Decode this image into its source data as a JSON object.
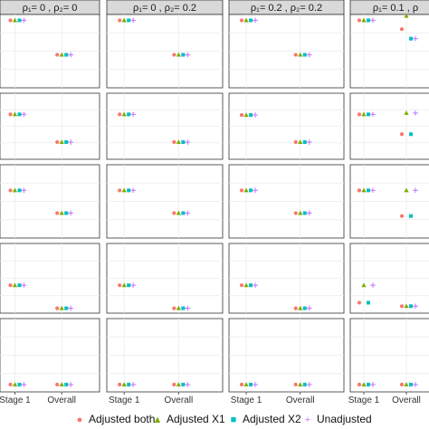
{
  "colors": {
    "adjusted_both": "#f8766d",
    "adjusted_x1": "#7cae00",
    "adjusted_x2": "#00bfc4",
    "unadjusted": "#c77cff",
    "strip_bg": "#d9d9d9",
    "panel_border": "#333333",
    "grid": "#ebebeb"
  },
  "legend": {
    "items": [
      {
        "label": "Adjusted both",
        "marker": "circle",
        "color_key": "adjusted_both"
      },
      {
        "label": "Adjusted X1",
        "marker": "triangle",
        "color_key": "adjusted_x1"
      },
      {
        "label": "Adjusted X2",
        "marker": "square",
        "color_key": "adjusted_x2"
      },
      {
        "label": "Unadjusted",
        "marker": "plus",
        "color_key": "unadjusted"
      }
    ],
    "placement": "bottom"
  },
  "chart_data": {
    "type": "scatter",
    "title": "",
    "xlabel": "",
    "ylabel": "",
    "categories": [
      "Stage 1",
      "Overall"
    ],
    "grid": true,
    "facet_columns": [
      {
        "strip_label": "ρ₁= 0 , ρ₂= 0"
      },
      {
        "strip_label": "ρ₁= 0 , ρ₂= 0.2"
      },
      {
        "strip_label": "ρ₁= 0.2 , ρ₂= 0.2"
      },
      {
        "strip_label": "ρ₁= 0.1 , ρ"
      }
    ],
    "facet_row_count": 5,
    "ylim": [
      0,
      1
    ],
    "series_order": [
      "Adjusted both",
      "Adjusted X1",
      "Adjusted X2",
      "Unadjusted"
    ],
    "panels": [
      {
        "row": 0,
        "col": 0,
        "points": {
          "Stage 1": [
            0.92,
            0.92,
            0.92,
            0.92
          ],
          "Overall": [
            0.45,
            0.45,
            0.45,
            0.45
          ]
        }
      },
      {
        "row": 0,
        "col": 1,
        "points": {
          "Stage 1": [
            0.92,
            0.92,
            0.92,
            0.92
          ],
          "Overall": [
            0.45,
            0.45,
            0.45,
            0.45
          ]
        }
      },
      {
        "row": 0,
        "col": 2,
        "points": {
          "Stage 1": [
            0.92,
            0.92,
            0.92,
            0.92
          ],
          "Overall": [
            0.45,
            0.45,
            0.45,
            0.45
          ]
        }
      },
      {
        "row": 0,
        "col": 3,
        "points": {
          "Stage 1": [
            0.92,
            0.92,
            0.92,
            0.92
          ],
          "Overall": [
            0.8,
            0.98,
            0.67,
            0.67
          ]
        }
      },
      {
        "row": 1,
        "col": 0,
        "points": {
          "Stage 1": [
            0.68,
            0.68,
            0.68,
            0.68
          ],
          "Overall": [
            0.26,
            0.26,
            0.26,
            0.26
          ]
        }
      },
      {
        "row": 1,
        "col": 1,
        "points": {
          "Stage 1": [
            0.68,
            0.68,
            0.68,
            0.68
          ],
          "Overall": [
            0.26,
            0.26,
            0.26,
            0.26
          ]
        }
      },
      {
        "row": 1,
        "col": 2,
        "points": {
          "Stage 1": [
            0.67,
            0.67,
            0.67,
            0.67
          ],
          "Overall": [
            0.26,
            0.26,
            0.26,
            0.26
          ]
        }
      },
      {
        "row": 1,
        "col": 3,
        "points": {
          "Stage 1": [
            0.68,
            0.68,
            0.68,
            0.68
          ],
          "Overall": [
            0.38,
            0.7,
            0.38,
            0.7
          ]
        }
      },
      {
        "row": 2,
        "col": 0,
        "points": {
          "Stage 1": [
            0.65,
            0.65,
            0.65,
            0.65
          ],
          "Overall": [
            0.34,
            0.34,
            0.34,
            0.34
          ]
        }
      },
      {
        "row": 2,
        "col": 1,
        "points": {
          "Stage 1": [
            0.65,
            0.65,
            0.65,
            0.65
          ],
          "Overall": [
            0.34,
            0.34,
            0.34,
            0.34
          ]
        }
      },
      {
        "row": 2,
        "col": 2,
        "points": {
          "Stage 1": [
            0.65,
            0.65,
            0.65,
            0.65
          ],
          "Overall": [
            0.34,
            0.34,
            0.34,
            0.34
          ]
        }
      },
      {
        "row": 2,
        "col": 3,
        "points": {
          "Stage 1": [
            0.65,
            0.65,
            0.65,
            0.65
          ],
          "Overall": [
            0.3,
            0.65,
            0.3,
            0.65
          ]
        }
      },
      {
        "row": 3,
        "col": 0,
        "points": {
          "Stage 1": [
            0.4,
            0.4,
            0.4,
            0.4
          ],
          "Overall": [
            0.07,
            0.07,
            0.07,
            0.07
          ]
        }
      },
      {
        "row": 3,
        "col": 1,
        "points": {
          "Stage 1": [
            0.4,
            0.4,
            0.4,
            0.4
          ],
          "Overall": [
            0.07,
            0.07,
            0.07,
            0.07
          ]
        }
      },
      {
        "row": 3,
        "col": 2,
        "points": {
          "Stage 1": [
            0.4,
            0.4,
            0.4,
            0.4
          ],
          "Overall": [
            0.07,
            0.07,
            0.07,
            0.07
          ]
        }
      },
      {
        "row": 3,
        "col": 3,
        "points": {
          "Stage 1": [
            0.15,
            0.4,
            0.15,
            0.4
          ],
          "Overall": [
            0.1,
            0.1,
            0.1,
            0.1
          ]
        }
      },
      {
        "row": 4,
        "col": 0,
        "points": {
          "Stage 1": [
            0.1,
            0.1,
            0.1,
            0.1
          ],
          "Overall": [
            0.1,
            0.1,
            0.1,
            0.1
          ]
        }
      },
      {
        "row": 4,
        "col": 1,
        "points": {
          "Stage 1": [
            0.1,
            0.1,
            0.1,
            0.1
          ],
          "Overall": [
            0.1,
            0.1,
            0.1,
            0.1
          ]
        }
      },
      {
        "row": 4,
        "col": 2,
        "points": {
          "Stage 1": [
            0.1,
            0.1,
            0.1,
            0.1
          ],
          "Overall": [
            0.1,
            0.1,
            0.1,
            0.1
          ]
        }
      },
      {
        "row": 4,
        "col": 3,
        "points": {
          "Stage 1": [
            0.1,
            0.1,
            0.1,
            0.1
          ],
          "Overall": [
            0.1,
            0.1,
            0.1,
            0.1
          ]
        }
      }
    ]
  }
}
